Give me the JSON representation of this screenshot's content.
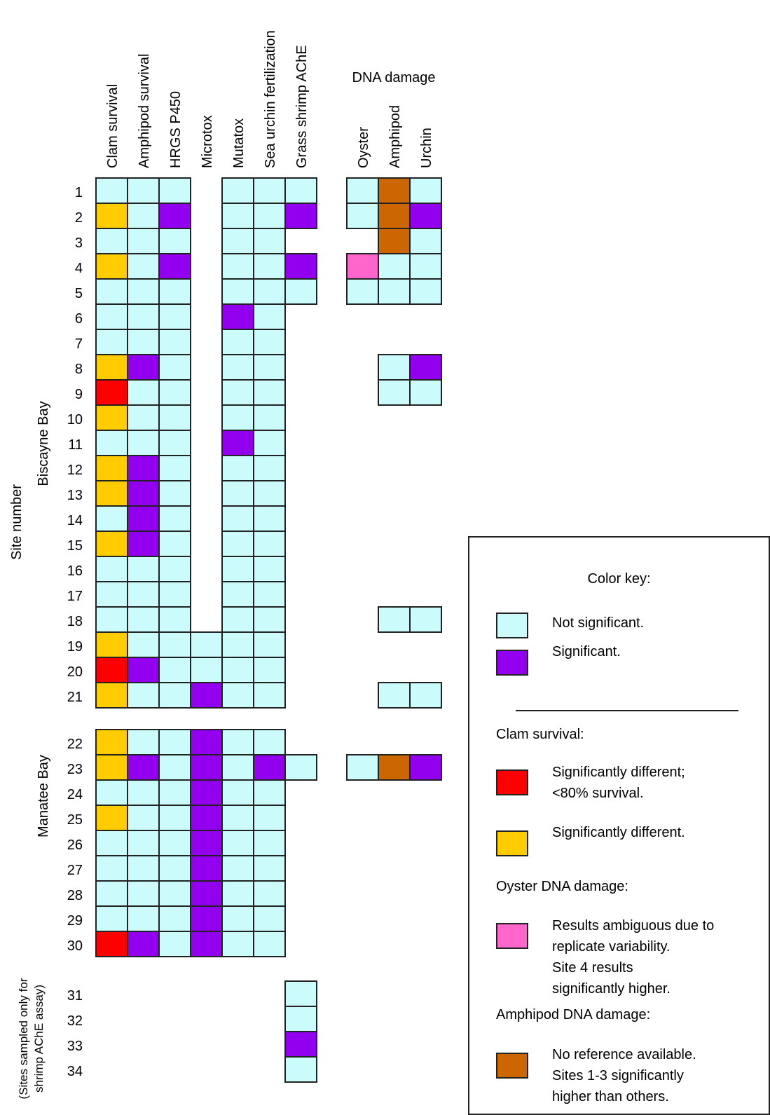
{
  "chart_data": {
    "type": "heatmap",
    "columns": [
      {
        "key": "clam",
        "label": "Clam survival"
      },
      {
        "key": "amphipod",
        "label": "Amphipod survival"
      },
      {
        "key": "hrgs",
        "label": "HRGS P450"
      },
      {
        "key": "microtox",
        "label": "Microtox"
      },
      {
        "key": "mutatox",
        "label": "Mutatox"
      },
      {
        "key": "urchin_fert",
        "label": "Sea urchin fertilization"
      },
      {
        "key": "shrimp",
        "label": "Grass shrimp AChE"
      },
      {
        "key": "dna_oyster",
        "label": "Oyster"
      },
      {
        "key": "dna_amphipod",
        "label": "Amphipod"
      },
      {
        "key": "dna_urchin",
        "label": "Urchin"
      }
    ],
    "column_group_label": "DNA damage",
    "y_axis_label": "Site number",
    "region_labels": {
      "biscayne": "Biscayne Bay",
      "manatee": "Manatee Bay",
      "shrimp_only_line1": "(Sites sampled only for",
      "shrimp_only_line2": "shrimp AChE assay)"
    },
    "codes": {
      "N": "Not significant",
      "S": "Significant",
      "R": "Significantly different; <80% survival",
      "Y": "Significantly different",
      "P": "Results ambiguous due to replicate variability",
      "B": "No reference available",
      "-": "Not sampled"
    },
    "sites": [
      {
        "site": 1,
        "cells": [
          "N",
          "N",
          "N",
          "-",
          "N",
          "N",
          "N",
          "N",
          "B",
          "N"
        ]
      },
      {
        "site": 2,
        "cells": [
          "Y",
          "N",
          "S",
          "-",
          "N",
          "N",
          "S",
          "N",
          "B",
          "S"
        ]
      },
      {
        "site": 3,
        "cells": [
          "N",
          "N",
          "N",
          "-",
          "N",
          "N",
          "-",
          "-",
          "B",
          "N"
        ]
      },
      {
        "site": 4,
        "cells": [
          "Y",
          "N",
          "S",
          "-",
          "N",
          "N",
          "S",
          "P",
          "N",
          "N"
        ]
      },
      {
        "site": 5,
        "cells": [
          "N",
          "N",
          "N",
          "-",
          "N",
          "N",
          "N",
          "N",
          "N",
          "N"
        ]
      },
      {
        "site": 6,
        "cells": [
          "N",
          "N",
          "N",
          "-",
          "S",
          "N",
          "-",
          "-",
          "-",
          "-"
        ]
      },
      {
        "site": 7,
        "cells": [
          "N",
          "N",
          "N",
          "-",
          "N",
          "N",
          "-",
          "-",
          "-",
          "-"
        ]
      },
      {
        "site": 8,
        "cells": [
          "Y",
          "S",
          "N",
          "-",
          "N",
          "N",
          "-",
          "-",
          "N",
          "S"
        ]
      },
      {
        "site": 9,
        "cells": [
          "R",
          "N",
          "N",
          "-",
          "N",
          "N",
          "-",
          "-",
          "N",
          "N"
        ]
      },
      {
        "site": 10,
        "cells": [
          "Y",
          "N",
          "N",
          "-",
          "N",
          "N",
          "-",
          "-",
          "-",
          "-"
        ]
      },
      {
        "site": 11,
        "cells": [
          "N",
          "N",
          "N",
          "-",
          "S",
          "N",
          "-",
          "-",
          "-",
          "-"
        ]
      },
      {
        "site": 12,
        "cells": [
          "Y",
          "S",
          "N",
          "-",
          "N",
          "N",
          "-",
          "-",
          "-",
          "-"
        ]
      },
      {
        "site": 13,
        "cells": [
          "Y",
          "S",
          "N",
          "-",
          "N",
          "N",
          "-",
          "-",
          "-",
          "-"
        ]
      },
      {
        "site": 14,
        "cells": [
          "N",
          "S",
          "N",
          "-",
          "N",
          "N",
          "-",
          "-",
          "-",
          "-"
        ]
      },
      {
        "site": 15,
        "cells": [
          "Y",
          "S",
          "N",
          "-",
          "N",
          "N",
          "-",
          "-",
          "-",
          "-"
        ]
      },
      {
        "site": 16,
        "cells": [
          "N",
          "N",
          "N",
          "-",
          "N",
          "N",
          "-",
          "-",
          "-",
          "-"
        ]
      },
      {
        "site": 17,
        "cells": [
          "N",
          "N",
          "N",
          "-",
          "N",
          "N",
          "-",
          "-",
          "-",
          "-"
        ]
      },
      {
        "site": 18,
        "cells": [
          "N",
          "N",
          "N",
          "-",
          "N",
          "N",
          "-",
          "-",
          "N",
          "N"
        ]
      },
      {
        "site": 19,
        "cells": [
          "Y",
          "N",
          "N",
          "N",
          "N",
          "N",
          "-",
          "-",
          "-",
          "-"
        ]
      },
      {
        "site": 20,
        "cells": [
          "R",
          "S",
          "N",
          "N",
          "N",
          "N",
          "-",
          "-",
          "-",
          "-"
        ]
      },
      {
        "site": 21,
        "cells": [
          "Y",
          "N",
          "N",
          "S",
          "N",
          "N",
          "-",
          "-",
          "N",
          "N"
        ]
      },
      {
        "site": 22,
        "cells": [
          "Y",
          "N",
          "N",
          "S",
          "N",
          "N",
          "-",
          "-",
          "-",
          "-"
        ]
      },
      {
        "site": 23,
        "cells": [
          "Y",
          "S",
          "N",
          "S",
          "N",
          "S",
          "N",
          "N",
          "B",
          "S"
        ]
      },
      {
        "site": 24,
        "cells": [
          "N",
          "N",
          "N",
          "S",
          "N",
          "N",
          "-",
          "-",
          "-",
          "-"
        ]
      },
      {
        "site": 25,
        "cells": [
          "Y",
          "N",
          "N",
          "S",
          "N",
          "N",
          "-",
          "-",
          "-",
          "-"
        ]
      },
      {
        "site": 26,
        "cells": [
          "N",
          "N",
          "N",
          "S",
          "N",
          "N",
          "-",
          "-",
          "-",
          "-"
        ]
      },
      {
        "site": 27,
        "cells": [
          "N",
          "N",
          "N",
          "S",
          "N",
          "N",
          "-",
          "-",
          "-",
          "-"
        ]
      },
      {
        "site": 28,
        "cells": [
          "N",
          "N",
          "N",
          "S",
          "N",
          "N",
          "-",
          "-",
          "-",
          "-"
        ]
      },
      {
        "site": 29,
        "cells": [
          "N",
          "N",
          "N",
          "S",
          "N",
          "N",
          "-",
          "-",
          "-",
          "-"
        ]
      },
      {
        "site": 30,
        "cells": [
          "R",
          "S",
          "N",
          "S",
          "N",
          "N",
          "-",
          "-",
          "-",
          "-"
        ]
      },
      {
        "site": 31,
        "cells": [
          "-",
          "-",
          "-",
          "-",
          "-",
          "-",
          "N",
          "-",
          "-",
          "-"
        ]
      },
      {
        "site": 32,
        "cells": [
          "-",
          "-",
          "-",
          "-",
          "-",
          "-",
          "N",
          "-",
          "-",
          "-"
        ]
      },
      {
        "site": 33,
        "cells": [
          "-",
          "-",
          "-",
          "-",
          "-",
          "-",
          "S",
          "-",
          "-",
          "-"
        ]
      },
      {
        "site": 34,
        "cells": [
          "-",
          "-",
          "-",
          "-",
          "-",
          "-",
          "N",
          "-",
          "-",
          "-"
        ]
      }
    ],
    "colors": {
      "N": "#ccfbfb",
      "S": "#9300f0",
      "R": "#ff0000",
      "Y": "#ffcc00",
      "P": "#ff66cc",
      "B": "#cc6600"
    }
  },
  "legend": {
    "title": "Color key:",
    "not_significant": "Not significant.",
    "significant": "Significant.",
    "clam_heading": "Clam survival:",
    "clam_red_1": "Significantly different;",
    "clam_red_2": "<80% survival.",
    "clam_yellow": "Significantly different.",
    "oyster_heading": "Oyster DNA damage:",
    "oyster_1": "Results ambiguous due to",
    "oyster_2": "replicate variability.",
    "oyster_3": "Site 4 results",
    "oyster_4": "significantly higher.",
    "amphipod_heading": "Amphipod DNA damage:",
    "amphipod_1": "No reference  available.",
    "amphipod_2": "Sites 1-3 significantly",
    "amphipod_3": "higher than others."
  }
}
